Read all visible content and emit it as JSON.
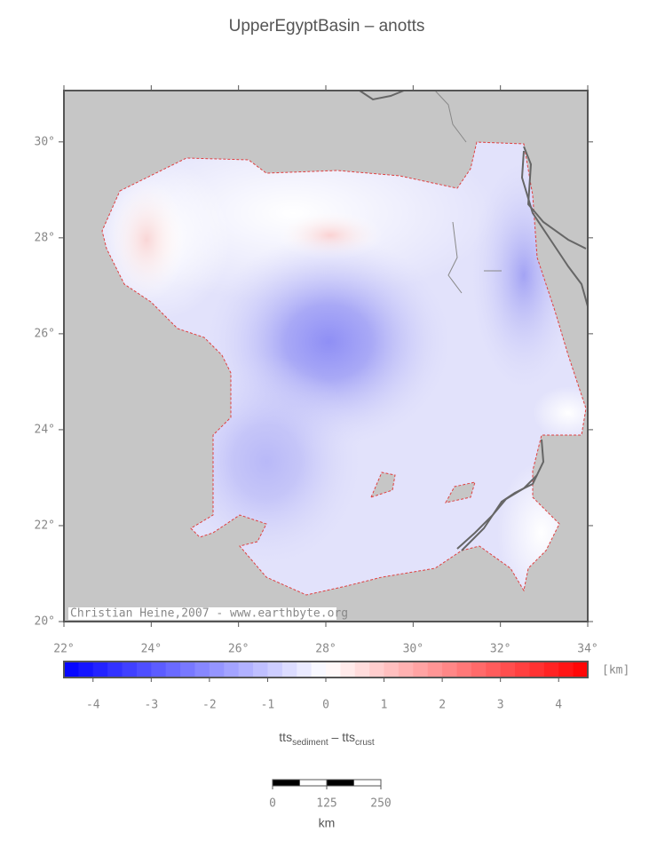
{
  "title": "UpperEgyptBasin – anotts",
  "map": {
    "xlim": [
      22,
      34
    ],
    "ylim": [
      20,
      31.07
    ],
    "xticks": [
      {
        "value": 22,
        "label": "22°"
      },
      {
        "value": 24,
        "label": "24°"
      },
      {
        "value": 26,
        "label": "26°"
      },
      {
        "value": 28,
        "label": "28°"
      },
      {
        "value": 30,
        "label": "30°"
      },
      {
        "value": 32,
        "label": "32°"
      },
      {
        "value": 34,
        "label": "34°"
      }
    ],
    "yticks": [
      {
        "value": 20,
        "label": "20°"
      },
      {
        "value": 22,
        "label": "22°"
      },
      {
        "value": 24,
        "label": "24°"
      },
      {
        "value": 26,
        "label": "26°"
      },
      {
        "value": 28,
        "label": "28°"
      },
      {
        "value": 30,
        "label": "30°"
      }
    ],
    "credit": "Christian Heine,2007 - www.earthbyte.org"
  },
  "colorbar": {
    "lim": [
      -4.5,
      4.5
    ],
    "ticks": [
      -4,
      -3,
      -2,
      -1,
      0,
      1,
      2,
      3,
      4
    ],
    "unit": "[km]"
  },
  "caption": [
    "tts",
    "sediment",
    " – tts",
    "crust"
  ],
  "scalebar": {
    "ticks": [
      0,
      125,
      250
    ],
    "unit": "km"
  }
}
